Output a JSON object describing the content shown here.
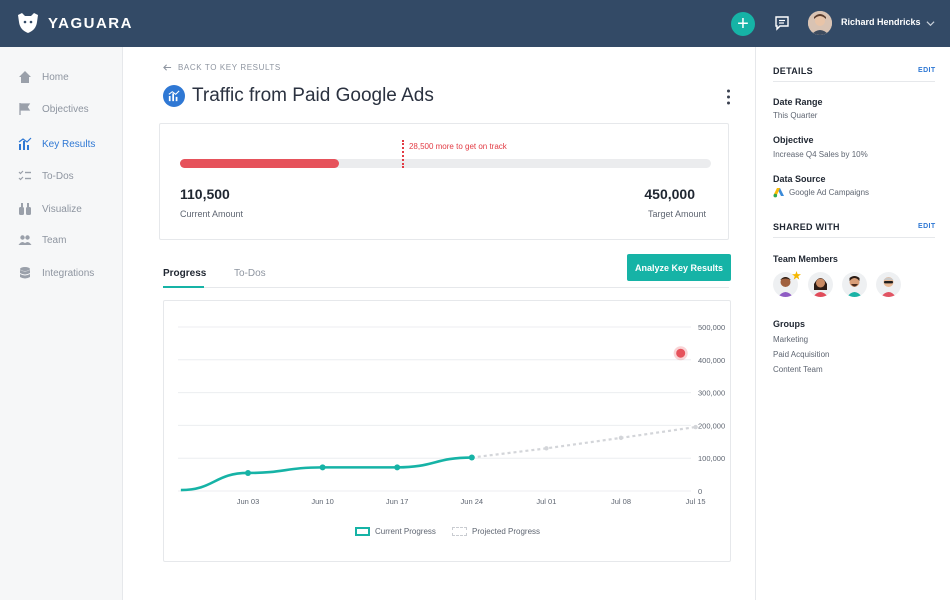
{
  "app": {
    "brand": "YAGUARA"
  },
  "topbar": {
    "user_name": "Richard Hendricks",
    "add_label": "+"
  },
  "sidebar": {
    "items": [
      {
        "label": "Home",
        "icon": "home-icon",
        "active": false
      },
      {
        "label": "Objectives",
        "icon": "flag-icon",
        "active": false
      },
      {
        "label": "Key Results",
        "icon": "bar-chart-icon",
        "active": true
      },
      {
        "label": "To-Dos",
        "icon": "checklist-icon",
        "active": false
      },
      {
        "label": "Visualize",
        "icon": "binoculars-icon",
        "active": false
      },
      {
        "label": "Team",
        "icon": "team-icon",
        "active": false
      },
      {
        "label": "Integrations",
        "icon": "database-icon",
        "active": false
      }
    ]
  },
  "main": {
    "back_label": "BACK TO KEY RESULTS",
    "title": "Traffic from Paid Google Ads",
    "progress": {
      "note": "28,500 more to get on track",
      "current_value": "110,500",
      "current_label": "Current Amount",
      "target_value": "450,000",
      "target_label": "Target Amount",
      "fill_fraction": 0.3,
      "on_track_fraction": 0.418
    },
    "tabs": [
      {
        "label": "Progress",
        "active": true
      },
      {
        "label": "To-Dos",
        "active": false
      }
    ],
    "analyze_label": "Analyze Key Results",
    "legend": {
      "current": "Current Progress",
      "projected": "Projected Progress"
    }
  },
  "chart_data": {
    "type": "line",
    "x": [
      "Jun 03",
      "Jun 10",
      "Jun 17",
      "Jun 24",
      "Jul 01",
      "Jul 08",
      "Jul 15"
    ],
    "y_ticks": [
      "500,000",
      "400,000",
      "300,000",
      "200,000",
      "100,000",
      "0"
    ],
    "ylim": [
      0,
      500000
    ],
    "series": [
      {
        "name": "Current Progress",
        "points": [
          [
            -0.9,
            3000
          ],
          [
            0,
            55000
          ],
          [
            1,
            72000
          ],
          [
            2,
            72000
          ],
          [
            3,
            102000
          ]
        ]
      },
      {
        "name": "Projected Progress",
        "points": [
          [
            3,
            102000
          ],
          [
            4,
            130000
          ],
          [
            5,
            162000
          ],
          [
            6,
            195000
          ]
        ]
      }
    ],
    "target_point": {
      "x": 5.8,
      "y": 420000
    },
    "colors": {
      "current": "#16b3a6",
      "projected": "#d3d5d9",
      "target": "#e6525b"
    }
  },
  "details": {
    "heading": "DETAILS",
    "edit_label": "EDIT",
    "date_range_label": "Date Range",
    "date_range_value": "This Quarter",
    "objective_label": "Objective",
    "objective_value": "Increase Q4 Sales by 10%",
    "data_source_label": "Data Source",
    "data_source_value": "Google Ad Campaigns"
  },
  "shared": {
    "heading": "SHARED WITH",
    "edit_label": "EDIT",
    "members_label": "Team Members",
    "groups_label": "Groups",
    "groups": [
      "Marketing",
      "Paid Acquisition",
      "Content Team"
    ]
  }
}
